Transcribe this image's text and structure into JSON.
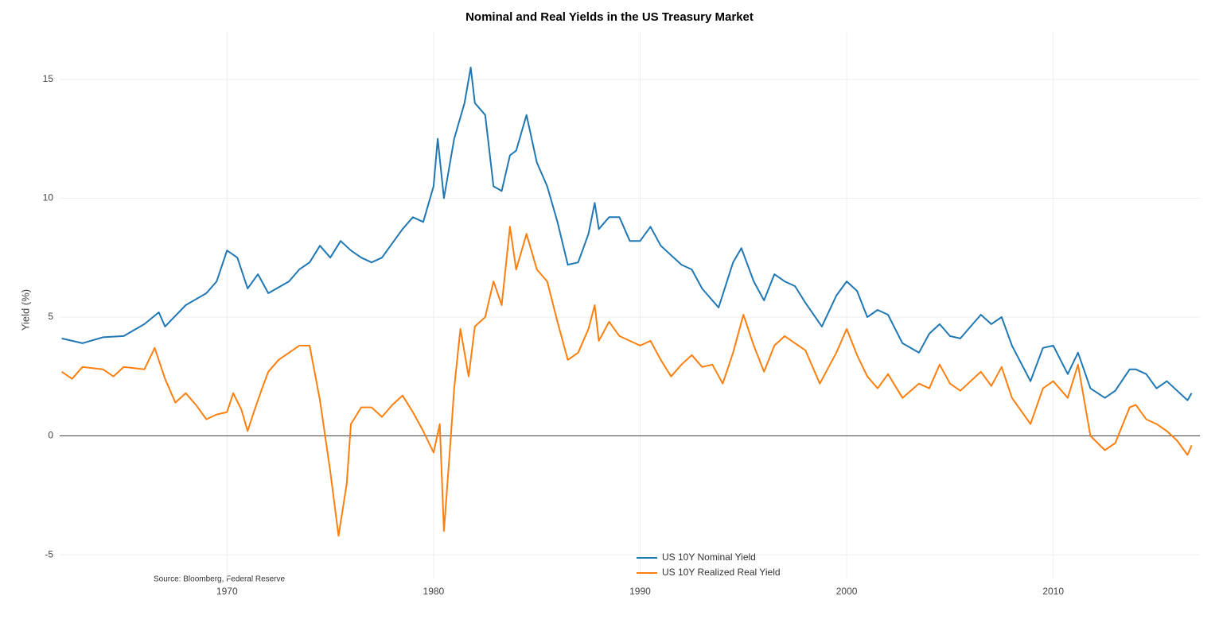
{
  "chart_data": {
    "type": "line",
    "title": "Nominal and Real Yields in the US Treasury Market",
    "y_label": "Yield (%)",
    "annotation": "Source: Bloomberg, Federal Reserve",
    "xlim": [
      1961.9,
      2017.1
    ],
    "xticks": [
      1970,
      1980,
      1990,
      2000,
      2010
    ],
    "ylim": [
      -6,
      17
    ],
    "yticks": [
      -5,
      0,
      5,
      10,
      15
    ],
    "grid": true,
    "zeroline": true,
    "legend": "bottom",
    "series": [
      {
        "name": "US 10Y Nominal Yield",
        "color": "#1f77b4",
        "x": [
          1962.0,
          1963,
          1964,
          1965,
          1966,
          1966.7,
          1967,
          1968,
          1969,
          1969.5,
          1970,
          1970.5,
          1971,
          1971.5,
          1972,
          1973,
          1973.5,
          1974,
          1974.5,
          1975,
          1975.5,
          1976,
          1976.5,
          1977,
          1977.5,
          1978,
          1978.5,
          1979,
          1979.5,
          1980,
          1980.2,
          1980.5,
          1981,
          1981.5,
          1981.8,
          1982,
          1982.5,
          1982.9,
          1983.3,
          1983.7,
          1984,
          1984.5,
          1985,
          1985.5,
          1986,
          1986.5,
          1987,
          1987.5,
          1987.8,
          1988,
          1988.5,
          1989,
          1989.5,
          1990,
          1990.5,
          1991,
          1992,
          1992.5,
          1993,
          1993.8,
          1994.5,
          1994.9,
          1995.5,
          1996,
          1996.5,
          1997,
          1997.5,
          1998,
          1998.8,
          1999.5,
          2000,
          2000.5,
          2001,
          2001.5,
          2002,
          2002.7,
          2003.5,
          2004,
          2004.5,
          2005,
          2005.5,
          2006,
          2006.5,
          2007,
          2007.5,
          2008,
          2008.9,
          2009.5,
          2010,
          2010.7,
          2011.2,
          2011.8,
          2012.5,
          2013,
          2013.7,
          2014,
          2014.5,
          2015,
          2015.5,
          2016,
          2016.5,
          2016.7
        ],
        "values": [
          4.1,
          3.9,
          4.15,
          4.2,
          4.7,
          5.2,
          4.6,
          5.5,
          6.0,
          6.5,
          7.8,
          7.5,
          6.2,
          6.8,
          6.0,
          6.5,
          7.0,
          7.3,
          8.0,
          7.5,
          8.2,
          7.8,
          7.5,
          7.3,
          7.5,
          8.1,
          8.7,
          9.2,
          9.0,
          10.5,
          12.5,
          10.0,
          12.5,
          14.0,
          15.5,
          14.0,
          13.5,
          10.5,
          10.3,
          11.8,
          12.0,
          13.5,
          11.5,
          10.5,
          9.0,
          7.2,
          7.3,
          8.5,
          9.8,
          8.7,
          9.2,
          9.2,
          8.2,
          8.2,
          8.8,
          8.0,
          7.2,
          7.0,
          6.2,
          5.4,
          7.3,
          7.9,
          6.5,
          5.7,
          6.8,
          6.5,
          6.3,
          5.6,
          4.6,
          5.9,
          6.5,
          6.1,
          5.0,
          5.3,
          5.1,
          3.9,
          3.5,
          4.3,
          4.7,
          4.2,
          4.1,
          4.6,
          5.1,
          4.7,
          5.0,
          3.8,
          2.3,
          3.7,
          3.8,
          2.6,
          3.5,
          2.0,
          1.6,
          1.9,
          2.8,
          2.8,
          2.6,
          2.0,
          2.3,
          1.9,
          1.5,
          1.8
        ]
      },
      {
        "name": "US 10Y Realized Real Yield",
        "color": "#ff7f0e",
        "x": [
          1962,
          1962.5,
          1963,
          1964,
          1964.5,
          1965,
          1966,
          1966.5,
          1967,
          1967.5,
          1968,
          1968.5,
          1969,
          1969.5,
          1970,
          1970.3,
          1970.7,
          1971,
          1971.3,
          1971.7,
          1972,
          1972.5,
          1973,
          1973.5,
          1974,
          1974.5,
          1975,
          1975.4,
          1975.8,
          1976,
          1976.5,
          1977,
          1977.5,
          1978,
          1978.5,
          1979,
          1979.5,
          1980,
          1980.3,
          1980.5,
          1980.8,
          1981,
          1981.3,
          1981.7,
          1982,
          1982.5,
          1982.9,
          1983.3,
          1983.7,
          1984,
          1984.5,
          1985,
          1985.5,
          1986,
          1986.5,
          1987,
          1987.5,
          1987.8,
          1988,
          1988.5,
          1989,
          1990,
          1990.5,
          1991,
          1991.5,
          1992,
          1992.5,
          1993,
          1993.5,
          1994,
          1994.5,
          1995,
          1995.5,
          1996,
          1996.5,
          1997,
          1997.5,
          1998,
          1998.7,
          1999.5,
          2000,
          2000.5,
          2001,
          2001.5,
          2002,
          2002.7,
          2003.5,
          2004,
          2004.5,
          2005,
          2005.5,
          2006,
          2006.5,
          2007,
          2007.5,
          2008,
          2008.9,
          2009.5,
          2010,
          2010.7,
          2011.2,
          2011.8,
          2012.5,
          2013,
          2013.7,
          2014,
          2014.5,
          2015,
          2015.5,
          2016,
          2016.5,
          2016.7
        ],
        "values": [
          2.7,
          2.4,
          2.9,
          2.8,
          2.5,
          2.9,
          2.8,
          3.7,
          2.4,
          1.4,
          1.8,
          1.3,
          0.7,
          0.9,
          1.0,
          1.8,
          1.1,
          0.2,
          1.0,
          2.0,
          2.7,
          3.2,
          3.5,
          3.8,
          3.8,
          1.5,
          -1.5,
          -4.2,
          -2.0,
          0.5,
          1.2,
          1.2,
          0.8,
          1.3,
          1.7,
          1.0,
          0.2,
          -0.7,
          0.5,
          -4.0,
          -0.5,
          2.0,
          4.5,
          2.5,
          4.6,
          5.0,
          6.5,
          5.5,
          8.8,
          7.0,
          8.5,
          7.0,
          6.5,
          4.8,
          3.2,
          3.5,
          4.5,
          5.5,
          4.0,
          4.8,
          4.2,
          3.8,
          4.0,
          3.2,
          2.5,
          3.0,
          3.4,
          2.9,
          3.0,
          2.2,
          3.5,
          5.1,
          3.8,
          2.7,
          3.8,
          4.2,
          3.9,
          3.6,
          2.2,
          3.5,
          4.5,
          3.4,
          2.5,
          2.0,
          2.6,
          1.6,
          2.2,
          2.0,
          3.0,
          2.2,
          1.9,
          2.3,
          2.7,
          2.1,
          2.9,
          1.6,
          0.5,
          2.0,
          2.3,
          1.6,
          3.0,
          0.0,
          -0.6,
          -0.3,
          1.2,
          1.3,
          0.7,
          0.5,
          0.2,
          -0.2,
          -0.8,
          -0.4
        ]
      }
    ]
  }
}
